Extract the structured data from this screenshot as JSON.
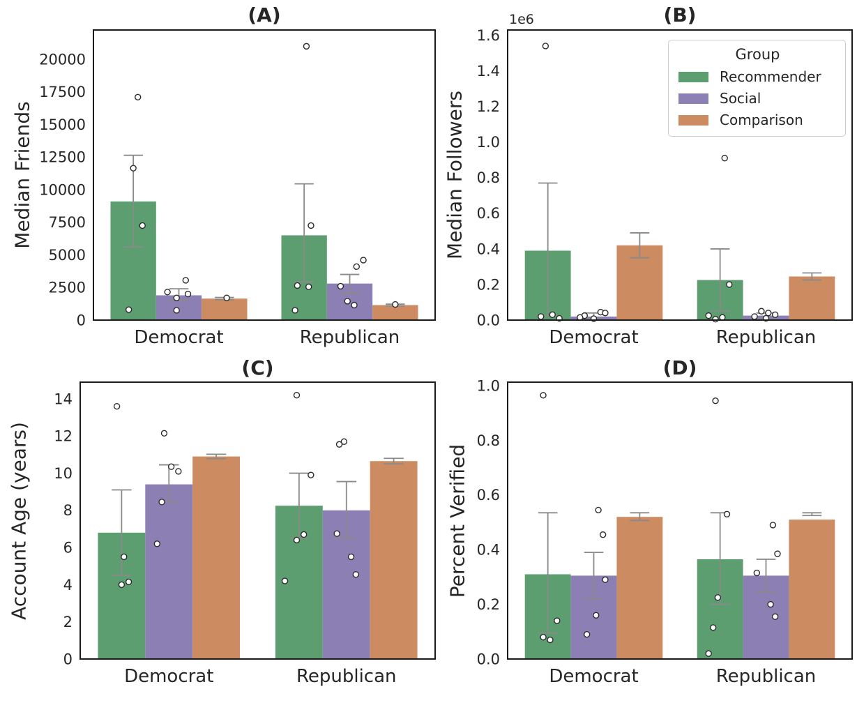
{
  "figure": {
    "background": "#ffffff",
    "text_color": "#262626",
    "spine_color": "#1c1c1c",
    "errorbar_color": "#8a8a8a",
    "point_fill": "#ffffff",
    "point_stroke": "#2b2b2b"
  },
  "legend": {
    "title": "Group",
    "items": [
      {
        "label": "Recommender",
        "color": "#5c9e70"
      },
      {
        "label": "Social",
        "color": "#8b7fb4"
      },
      {
        "label": "Comparison",
        "color": "#cd8b61"
      }
    ]
  },
  "chart_data": [
    {
      "type": "bar",
      "title": "(A)",
      "ylabel": "Median Friends",
      "xlabel": "",
      "categories": [
        "Democrat",
        "Republican"
      ],
      "ylim": [
        0,
        22250
      ],
      "yticks": [
        0,
        2500,
        5000,
        7500,
        10000,
        12500,
        15000,
        17500,
        20000
      ],
      "ytick_labels": [
        "0",
        "2500",
        "5000",
        "7500",
        "10000",
        "12500",
        "15000",
        "17500",
        "20000"
      ],
      "offset_text": "",
      "grid": false,
      "series": [
        {
          "name": "Recommender",
          "color": "#5c9e70",
          "values": [
            9100,
            6500
          ],
          "ci_low": [
            5600,
            2950
          ],
          "ci_high": [
            12640,
            10450
          ],
          "points": [
            [
              17100,
              11650,
              7250,
              800
            ],
            [
              21000,
              7250,
              2650,
              2550,
              750
            ]
          ],
          "points_dx": [
            [
              0.1,
              0.0,
              0.2,
              -0.1
            ],
            [
              0.05,
              0.15,
              -0.15,
              0.1,
              -0.2
            ]
          ]
        },
        {
          "name": "Social",
          "color": "#8b7fb4",
          "values": [
            1900,
            2800
          ],
          "ci_low": [
            1500,
            2050
          ],
          "ci_high": [
            2400,
            3500
          ],
          "points": [
            [
              3050,
              2150,
              2000,
              1700,
              750
            ],
            [
              4600,
              4100,
              2600,
              1450,
              1150
            ]
          ],
          "points_dx": [
            [
              0.15,
              -0.25,
              0.2,
              -0.05,
              -0.05
            ],
            [
              0.3,
              0.15,
              -0.2,
              -0.05,
              0.1
            ]
          ]
        },
        {
          "name": "Comparison",
          "color": "#cd8b61",
          "values": [
            1650,
            1150
          ],
          "ci_low": [
            1560,
            1080
          ],
          "ci_high": [
            1740,
            1220
          ],
          "points": [
            [
              1700
            ],
            [
              1200
            ]
          ],
          "points_dx": [
            [
              0.05
            ],
            [
              0.0
            ]
          ]
        }
      ]
    },
    {
      "type": "bar",
      "title": "(B)",
      "ylabel": "Median Followers",
      "xlabel": "",
      "categories": [
        "Democrat",
        "Republican"
      ],
      "ylim": [
        0,
        1.63
      ],
      "yticks": [
        0.0,
        0.2,
        0.4,
        0.6,
        0.8,
        1.0,
        1.2,
        1.4,
        1.6
      ],
      "ytick_labels": [
        "0.0",
        "0.2",
        "0.4",
        "0.6",
        "0.8",
        "1.0",
        "1.2",
        "1.4",
        "1.6"
      ],
      "offset_text": "1e6",
      "grid": false,
      "series": [
        {
          "name": "Recommender",
          "color": "#5c9e70",
          "values": [
            0.39,
            0.225
          ],
          "ci_low": [
            0.02,
            0.05
          ],
          "ci_high": [
            0.77,
            0.4
          ],
          "points": [
            [
              1.54,
              0.03,
              0.02,
              0.01
            ],
            [
              0.91,
              0.2,
              0.025,
              0.015,
              0.005
            ]
          ],
          "points_dx": [
            [
              -0.05,
              0.1,
              -0.15,
              0.25
            ],
            [
              0.1,
              0.2,
              -0.25,
              0.05,
              -0.1
            ]
          ]
        },
        {
          "name": "Social",
          "color": "#8b7fb4",
          "values": [
            0.02,
            0.025
          ],
          "ci_low": [
            0.008,
            0.012
          ],
          "ci_high": [
            0.04,
            0.04
          ],
          "points": [
            [
              0.045,
              0.04,
              0.025,
              0.015,
              0.008
            ],
            [
              0.05,
              0.04,
              0.03,
              0.02,
              0.01
            ]
          ],
          "points_dx": [
            [
              0.15,
              0.25,
              -0.2,
              -0.3,
              0.0
            ],
            [
              -0.1,
              0.05,
              0.2,
              -0.25,
              0.0
            ]
          ]
        },
        {
          "name": "Comparison",
          "color": "#cd8b61",
          "values": [
            0.42,
            0.245
          ],
          "ci_low": [
            0.35,
            0.225
          ],
          "ci_high": [
            0.49,
            0.265
          ],
          "points": [
            [],
            []
          ],
          "points_dx": [
            [],
            []
          ]
        }
      ]
    },
    {
      "type": "bar",
      "title": "(C)",
      "ylabel": "Account Age (years)",
      "xlabel": "",
      "categories": [
        "Democrat",
        "Republican"
      ],
      "ylim": [
        0,
        14.9
      ],
      "yticks": [
        0,
        2,
        4,
        6,
        8,
        10,
        12,
        14
      ],
      "ytick_labels": [
        "0",
        "2",
        "4",
        "6",
        "8",
        "10",
        "12",
        "14"
      ],
      "offset_text": "",
      "grid": false,
      "series": [
        {
          "name": "Recommender",
          "color": "#5c9e70",
          "values": [
            6.8,
            8.25
          ],
          "ci_low": [
            4.5,
            6.5
          ],
          "ci_high": [
            9.1,
            10.0
          ],
          "points": [
            [
              13.6,
              5.5,
              4.15,
              4.0
            ],
            [
              14.2,
              9.9,
              6.7,
              6.4,
              4.2
            ]
          ],
          "points_dx": [
            [
              -0.1,
              0.05,
              0.15,
              0.0
            ],
            [
              -0.05,
              0.25,
              0.1,
              -0.05,
              -0.3
            ]
          ]
        },
        {
          "name": "Social",
          "color": "#8b7fb4",
          "values": [
            9.4,
            8.0
          ],
          "ci_low": [
            8.45,
            6.5
          ],
          "ci_high": [
            10.45,
            9.55
          ],
          "points": [
            [
              12.15,
              10.35,
              10.1,
              8.45,
              6.2
            ],
            [
              11.7,
              11.55,
              6.75,
              5.5,
              4.55
            ]
          ],
          "points_dx": [
            [
              -0.1,
              0.05,
              0.2,
              -0.15,
              -0.25
            ],
            [
              -0.05,
              -0.15,
              -0.2,
              0.1,
              0.2
            ]
          ]
        },
        {
          "name": "Comparison",
          "color": "#cd8b61",
          "values": [
            10.9,
            10.65
          ],
          "ci_low": [
            10.78,
            10.5
          ],
          "ci_high": [
            11.02,
            10.8
          ],
          "points": [
            [],
            []
          ],
          "points_dx": [
            [],
            []
          ]
        }
      ]
    },
    {
      "type": "bar",
      "title": "(D)",
      "ylabel": "Percent Verified",
      "xlabel": "",
      "categories": [
        "Democrat",
        "Republican"
      ],
      "ylim": [
        0,
        1.013
      ],
      "yticks": [
        0.0,
        0.2,
        0.4,
        0.6,
        0.8,
        1.0
      ],
      "ytick_labels": [
        "0.0",
        "0.2",
        "0.4",
        "0.6",
        "0.8",
        "1.0"
      ],
      "offset_text": "",
      "grid": false,
      "series": [
        {
          "name": "Recommender",
          "color": "#5c9e70",
          "values": [
            0.31,
            0.365
          ],
          "ci_low": [
            0.095,
            0.2
          ],
          "ci_high": [
            0.535,
            0.535
          ],
          "points": [
            [
              0.965,
              0.14,
              0.08,
              0.07
            ],
            [
              0.945,
              0.53,
              0.225,
              0.115,
              0.02
            ]
          ],
          "points_dx": [
            [
              -0.1,
              0.2,
              -0.1,
              0.05
            ],
            [
              -0.1,
              0.15,
              -0.05,
              -0.15,
              -0.25
            ]
          ]
        },
        {
          "name": "Social",
          "color": "#8b7fb4",
          "values": [
            0.305,
            0.305
          ],
          "ci_low": [
            0.22,
            0.245
          ],
          "ci_high": [
            0.39,
            0.365
          ],
          "points": [
            [
              0.545,
              0.455,
              0.29,
              0.16,
              0.09
            ],
            [
              0.49,
              0.385,
              0.315,
              0.2,
              0.155
            ]
          ],
          "points_dx": [
            [
              0.1,
              0.2,
              0.25,
              0.05,
              -0.15
            ],
            [
              0.15,
              0.25,
              -0.2,
              0.1,
              0.2
            ]
          ]
        },
        {
          "name": "Comparison",
          "color": "#cd8b61",
          "values": [
            0.52,
            0.51
          ],
          "ci_low": [
            0.507,
            0.535
          ],
          "ci_high": [
            0.535,
            0.525
          ],
          "points": [
            [],
            []
          ],
          "points_dx": [
            [],
            []
          ]
        }
      ]
    }
  ]
}
